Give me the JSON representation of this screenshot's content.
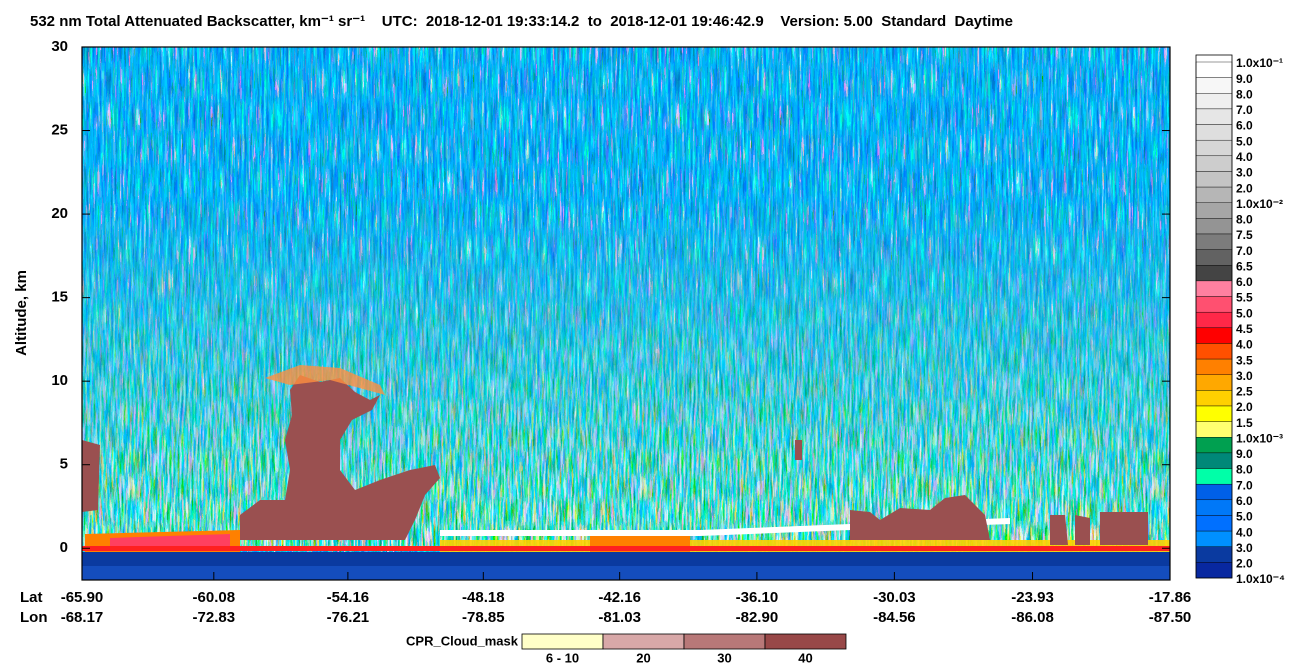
{
  "chart_data": {
    "type": "curtain",
    "title": "532 nm Total Attenuated Backscatter, km⁻¹ sr⁻¹    UTC:  2018-12-01 19:33:14.2  to  2018-12-01 19:46:42.9    Version: 5.00  Standard  Daytime",
    "y_label": "Altitude, km",
    "ylim": [
      -1.9,
      30
    ],
    "yticks": [
      0,
      5,
      10,
      15,
      20,
      25,
      30
    ],
    "xlim": [
      -65.9,
      -17.86
    ],
    "x_row_labels": [
      "Lat",
      "Lon"
    ],
    "xticks": [
      {
        "value": -65.9,
        "label": "-65.90"
      },
      {
        "value": -60.08,
        "label": "-60.08"
      },
      {
        "value": -54.16,
        "label": "-54.16"
      },
      {
        "value": -48.18,
        "label": "-48.18"
      },
      {
        "value": -42.16,
        "label": "-42.16"
      },
      {
        "value": -36.1,
        "label": "-36.10"
      },
      {
        "value": -30.03,
        "label": "-30.03"
      },
      {
        "value": -23.93,
        "label": "-23.93"
      },
      {
        "value": -17.86,
        "label": "-17.86"
      }
    ],
    "lon_labels": [
      "-68.17",
      "-72.83",
      "-76.21",
      "-78.85",
      "-81.03",
      "-82.90",
      "-84.56",
      "-86.08",
      "-87.50"
    ],
    "colorbar": {
      "labels": [
        "1.0x10⁻¹",
        "9.0",
        "8.0",
        "7.0",
        "6.0",
        "5.0",
        "4.0",
        "3.0",
        "2.0",
        "1.0x10⁻²",
        "8.0",
        "7.5",
        "7.0",
        "6.5",
        "6.0",
        "5.5",
        "5.0",
        "4.5",
        "4.0",
        "3.5",
        "3.0",
        "2.5",
        "2.0",
        "1.5",
        "1.0x10⁻³",
        "9.0",
        "8.0",
        "7.0",
        "6.0",
        "5.0",
        "4.0",
        "3.0",
        "2.0",
        "1.0x10⁻⁴"
      ],
      "colors": [
        "#ffffff",
        "#f7f7f7",
        "#efefef",
        "#e6e6e6",
        "#dedede",
        "#d6d6d6",
        "#cdcdcd",
        "#c4c4c4",
        "#b6b6b6",
        "#a6a6a6",
        "#949494",
        "#7c7c7c",
        "#626262",
        "#444444",
        "#ff80a0",
        "#ff5070",
        "#ff2848",
        "#ff0000",
        "#ff5000",
        "#ff8000",
        "#ffa800",
        "#ffd000",
        "#ffff00",
        "#ffff70",
        "#00a050",
        "#008878",
        "#00ffa8",
        "#0060e8",
        "#0078f8",
        "#0070ff",
        "#0090ff",
        "#0a3aa0",
        "#0828a0"
      ]
    },
    "cloud_mask": {
      "label": "CPR_Cloud_mask",
      "labels": [
        "6 - 10",
        "20",
        "30",
        "40"
      ],
      "colors": [
        "#ffffc8",
        "#d8a8a8",
        "#b87878",
        "#984848"
      ]
    }
  }
}
